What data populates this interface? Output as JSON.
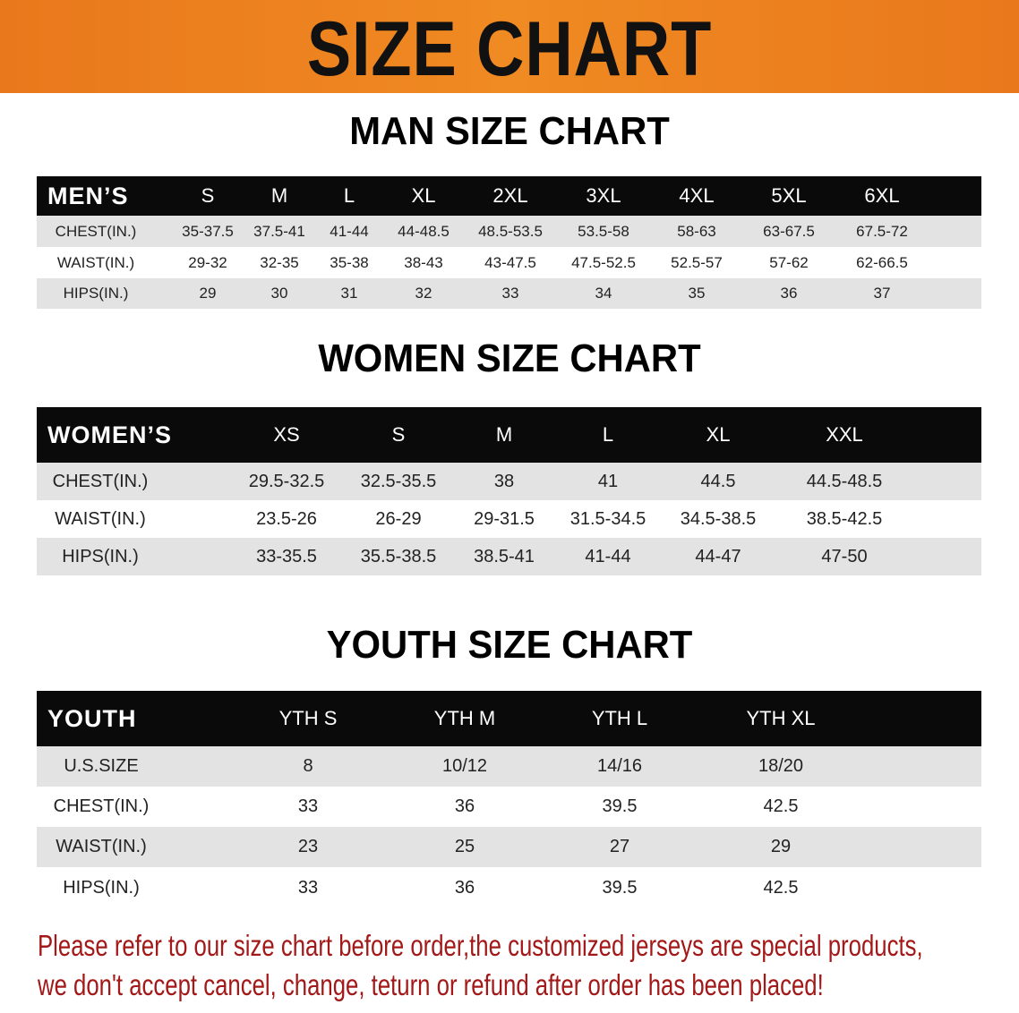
{
  "banner": {
    "title": "SIZE CHART",
    "color": "#ec7f1f"
  },
  "men": {
    "title": "MAN SIZE CHART",
    "header": [
      "MEN’S",
      "S",
      "M",
      "L",
      "XL",
      "2XL",
      "3XL",
      "4XL",
      "5XL",
      "6XL"
    ],
    "rows": [
      [
        "CHEST(IN.)",
        "35-37.5",
        "37.5-41",
        "41-44",
        "44-48.5",
        "48.5-53.5",
        "53.5-58",
        "58-63",
        "63-67.5",
        "67.5-72"
      ],
      [
        "WAIST(IN.)",
        "29-32",
        "32-35",
        "35-38",
        "38-43",
        "43-47.5",
        "47.5-52.5",
        "52.5-57",
        "57-62",
        "62-66.5"
      ],
      [
        "HIPS(IN.)",
        "29",
        "30",
        "31",
        "32",
        "33",
        "34",
        "35",
        "36",
        "37"
      ]
    ]
  },
  "women": {
    "title": "WOMEN SIZE CHART",
    "header": [
      "WOMEN’S",
      "XS",
      "S",
      "M",
      "L",
      "XL",
      "XXL"
    ],
    "rows": [
      [
        "CHEST(IN.)",
        "29.5-32.5",
        "32.5-35.5",
        "38",
        "41",
        "44.5",
        "44.5-48.5"
      ],
      [
        "WAIST(IN.)",
        "23.5-26",
        "26-29",
        "29-31.5",
        "31.5-34.5",
        "34.5-38.5",
        "38.5-42.5"
      ],
      [
        "HIPS(IN.)",
        "33-35.5",
        "35.5-38.5",
        "38.5-41",
        "41-44",
        "44-47",
        "47-50"
      ]
    ]
  },
  "youth": {
    "title": "YOUTH SIZE CHART",
    "header": [
      "YOUTH",
      "YTH S",
      "YTH M",
      "YTH L",
      "YTH XL"
    ],
    "rows": [
      [
        "U.S.SIZE",
        "8",
        "10/12",
        "14/16",
        "18/20"
      ],
      [
        "CHEST(IN.)",
        "33",
        "36",
        "39.5",
        "42.5"
      ],
      [
        "WAIST(IN.)",
        "23",
        "25",
        "27",
        "29"
      ],
      [
        "HIPS(IN.)",
        "33",
        "36",
        "39.5",
        "42.5"
      ]
    ]
  },
  "note": {
    "line1": "Please refer to our size chart before order,the customized jerseys are special products,",
    "line2": "we don't accept cancel, change, teturn or refund after order has been placed!",
    "color": "#a31818"
  }
}
